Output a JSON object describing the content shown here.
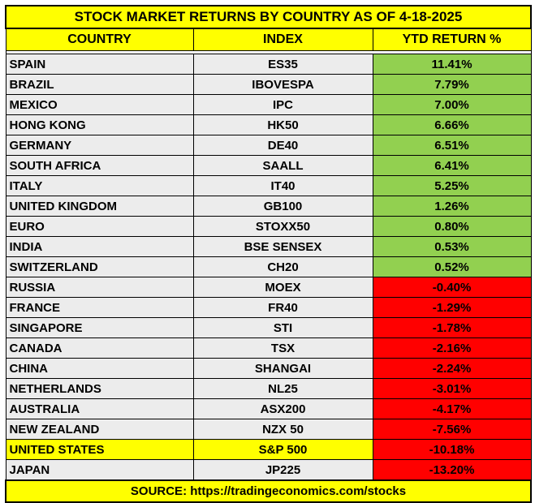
{
  "title": "STOCK MARKET RETURNS BY COUNTRY AS OF 4-18-2025",
  "columns": [
    "COUNTRY",
    "INDEX",
    "YTD RETURN %"
  ],
  "rows": [
    {
      "country": "SPAIN",
      "index": "ES35",
      "ytd": "11.41%",
      "status": "positive"
    },
    {
      "country": "BRAZIL",
      "index": "IBOVESPA",
      "ytd": "7.79%",
      "status": "positive"
    },
    {
      "country": "MEXICO",
      "index": "IPC",
      "ytd": "7.00%",
      "status": "positive"
    },
    {
      "country": "HONG KONG",
      "index": "HK50",
      "ytd": "6.66%",
      "status": "positive"
    },
    {
      "country": "GERMANY",
      "index": "DE40",
      "ytd": "6.51%",
      "status": "positive"
    },
    {
      "country": "SOUTH AFRICA",
      "index": "SAALL",
      "ytd": "6.41%",
      "status": "positive"
    },
    {
      "country": "ITALY",
      "index": "IT40",
      "ytd": "5.25%",
      "status": "positive"
    },
    {
      "country": "UNITED KINGDOM",
      "index": "GB100",
      "ytd": "1.26%",
      "status": "positive"
    },
    {
      "country": "EURO",
      "index": "STOXX50",
      "ytd": "0.80%",
      "status": "positive"
    },
    {
      "country": "INDIA",
      "index": "BSE SENSEX",
      "ytd": "0.53%",
      "status": "positive"
    },
    {
      "country": "SWITZERLAND",
      "index": "CH20",
      "ytd": "0.52%",
      "status": "positive"
    },
    {
      "country": "RUSSIA",
      "index": "MOEX",
      "ytd": "-0.40%",
      "status": "negative"
    },
    {
      "country": "FRANCE",
      "index": "FR40",
      "ytd": "-1.29%",
      "status": "negative"
    },
    {
      "country": "SINGAPORE",
      "index": "STI",
      "ytd": "-1.78%",
      "status": "negative"
    },
    {
      "country": "CANADA",
      "index": "TSX",
      "ytd": "-2.16%",
      "status": "negative"
    },
    {
      "country": "CHINA",
      "index": "SHANGAI",
      "ytd": "-2.24%",
      "status": "negative"
    },
    {
      "country": "NETHERLANDS",
      "index": "NL25",
      "ytd": "-3.01%",
      "status": "negative"
    },
    {
      "country": "AUSTRALIA",
      "index": "ASX200",
      "ytd": "-4.17%",
      "status": "negative"
    },
    {
      "country": "NEW ZEALAND",
      "index": "NZX 50",
      "ytd": "-7.56%",
      "status": "negative"
    },
    {
      "country": "UNITED STATES",
      "index": "S&P 500",
      "ytd": "-10.18%",
      "status": "negative",
      "highlight": true
    },
    {
      "country": "JAPAN",
      "index": "JP225",
      "ytd": "-13.20%",
      "status": "negative"
    }
  ],
  "source": "SOURCE: https://tradingeconomics.com/stocks",
  "colors": {
    "title_bg": "#ffff00",
    "positive": "#92d050",
    "negative": "#ff0000",
    "row_bg": "#ececec",
    "highlight": "#ffff00"
  }
}
